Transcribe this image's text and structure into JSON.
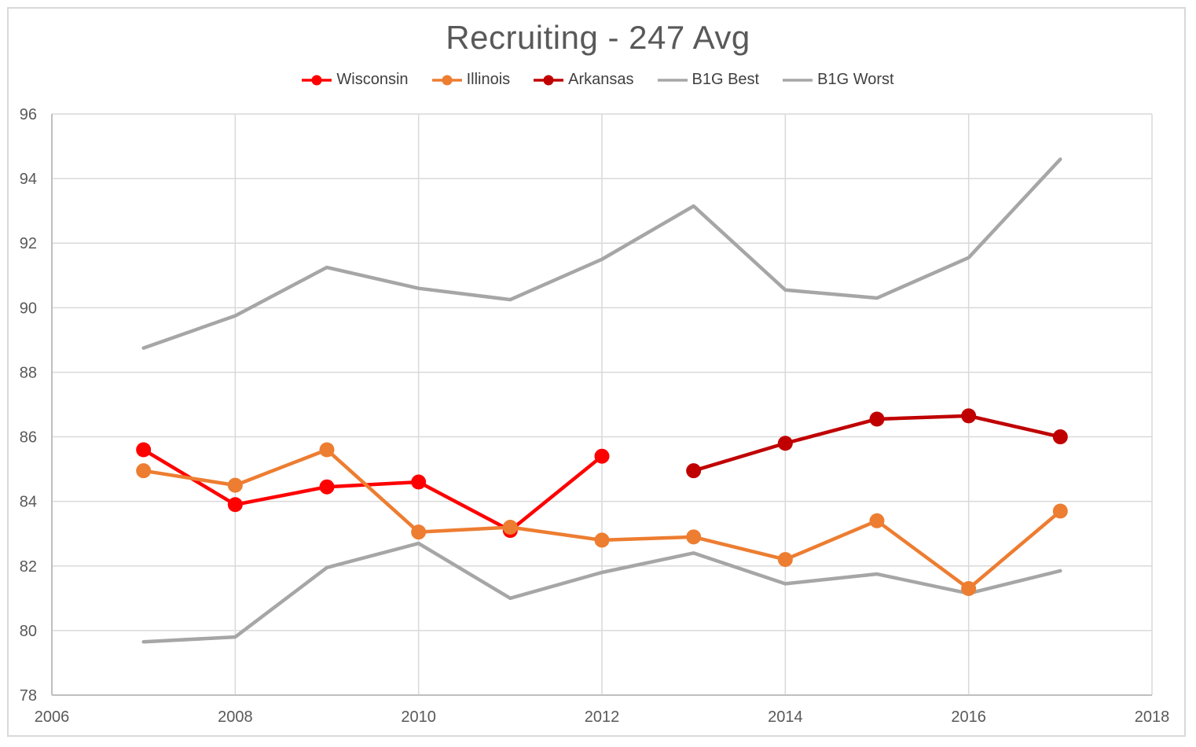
{
  "chart_data": {
    "type": "line",
    "title": "Recruiting - 247 Avg",
    "xlabel": "",
    "ylabel": "",
    "xlim": [
      2006,
      2018
    ],
    "ylim": [
      78,
      96
    ],
    "x_ticks": [
      2006,
      2008,
      2010,
      2012,
      2014,
      2016,
      2018
    ],
    "y_ticks": [
      96,
      94,
      92,
      90,
      88,
      86,
      84,
      82,
      80,
      78
    ],
    "grid": true,
    "legend_position": "top-center",
    "series": [
      {
        "name": "Wisconsin",
        "color": "#FF0000",
        "marker": true,
        "z": 3,
        "x": [
          2007,
          2008,
          2009,
          2010,
          2011,
          2012
        ],
        "values": [
          85.6,
          83.9,
          84.45,
          84.6,
          83.1,
          85.4
        ]
      },
      {
        "name": "Illinois",
        "color": "#ED7D31",
        "marker": true,
        "z": 5,
        "x": [
          2007,
          2008,
          2009,
          2010,
          2011,
          2012,
          2013,
          2014,
          2015,
          2016,
          2017
        ],
        "values": [
          84.95,
          84.5,
          85.6,
          83.05,
          83.2,
          82.8,
          82.9,
          82.2,
          83.4,
          81.3,
          83.7
        ]
      },
      {
        "name": "Arkansas",
        "color": "#C00000",
        "marker": true,
        "z": 4,
        "x": [
          2013,
          2014,
          2015,
          2016,
          2017
        ],
        "values": [
          84.95,
          85.8,
          86.55,
          86.65,
          86.0
        ]
      },
      {
        "name": "B1G Best",
        "color": "#A6A6A6",
        "marker": false,
        "z": 1,
        "x": [
          2007,
          2008,
          2009,
          2010,
          2011,
          2012,
          2013,
          2014,
          2015,
          2016,
          2017
        ],
        "values": [
          88.75,
          89.75,
          91.25,
          90.6,
          90.25,
          91.5,
          93.15,
          90.55,
          90.3,
          91.55,
          94.6
        ]
      },
      {
        "name": "B1G Worst",
        "color": "#A6A6A6",
        "marker": false,
        "z": 2,
        "x": [
          2007,
          2008,
          2009,
          2010,
          2011,
          2012,
          2013,
          2014,
          2015,
          2016,
          2017
        ],
        "values": [
          79.65,
          79.8,
          81.95,
          82.7,
          81.0,
          81.8,
          82.4,
          81.45,
          81.75,
          81.15,
          81.85
        ]
      }
    ]
  },
  "style": {
    "grid_color": "#D9D9D9",
    "axis_line_color": "#BFBFBF",
    "axis_text_color": "#595959",
    "title_color": "#595959",
    "legend_text_color": "#404040",
    "canvas_border_color": "#D9D9D9",
    "background": "#FFFFFF"
  }
}
